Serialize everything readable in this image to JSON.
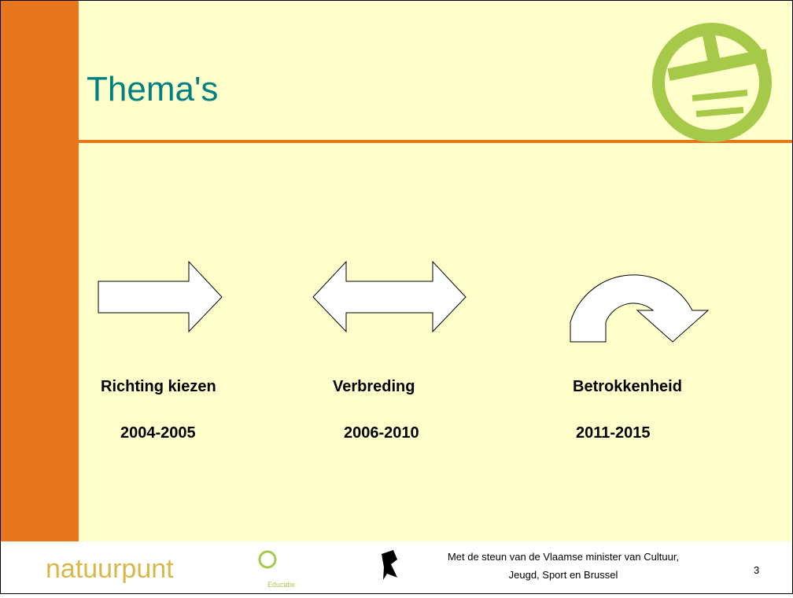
{
  "title": "Thema's",
  "themes": [
    {
      "label": "Richting kiezen",
      "period": "2004-2005"
    },
    {
      "label": "Verbreding",
      "period": "2006-2010"
    },
    {
      "label": "Betrokkenheid",
      "period": "2011-2015"
    }
  ],
  "footer": {
    "logo": "natuurpunt",
    "logo_sub": "Educatie",
    "support_line1": "Met de steun van de Vlaamse minister van Cultuur,",
    "support_line2": "Jeugd, Sport en Brussel",
    "page": "3"
  }
}
